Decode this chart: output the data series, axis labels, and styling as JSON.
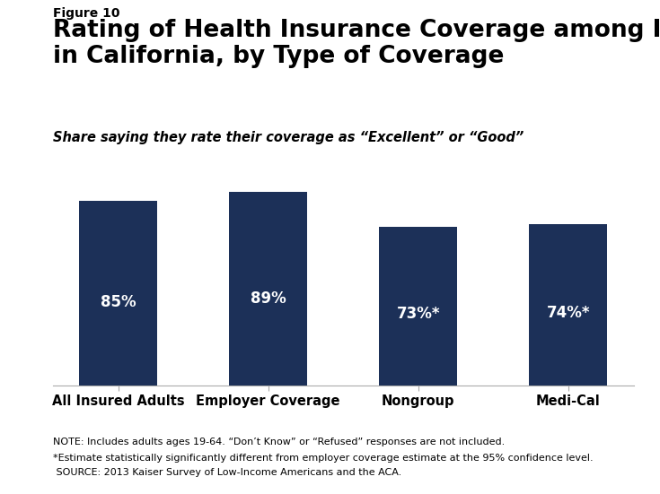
{
  "figure_label": "Figure 10",
  "title": "Rating of Health Insurance Coverage among Insured Adults\nin California, by Type of Coverage",
  "subtitle": "Share saying they rate their coverage as “Excellent” or “Good”",
  "categories": [
    "All Insured Adults",
    "Employer Coverage",
    "Nongroup",
    "Medi-Cal"
  ],
  "values": [
    85,
    89,
    73,
    74
  ],
  "labels": [
    "85%",
    "89%",
    "73%*",
    "74%*"
  ],
  "bar_color": "#1c3058",
  "bar_width": 0.52,
  "ylim": [
    0,
    100
  ],
  "note_line1": "NOTE: Includes adults ages 19-64. “Don’t Know” or “Refused” responses are not included.",
  "note_line2": "*Estimate statistically significantly different from employer coverage estimate at the 95% confidence level.",
  "note_line3": " SOURCE: 2013 Kaiser Survey of Low-Income Americans and the ACA.",
  "background_color": "#ffffff",
  "label_fontsize": 12,
  "title_fontsize": 19,
  "figure_label_fontsize": 10,
  "subtitle_fontsize": 10.5,
  "note_fontsize": 8,
  "tick_fontsize": 10.5,
  "logo_color": "#1c3058"
}
